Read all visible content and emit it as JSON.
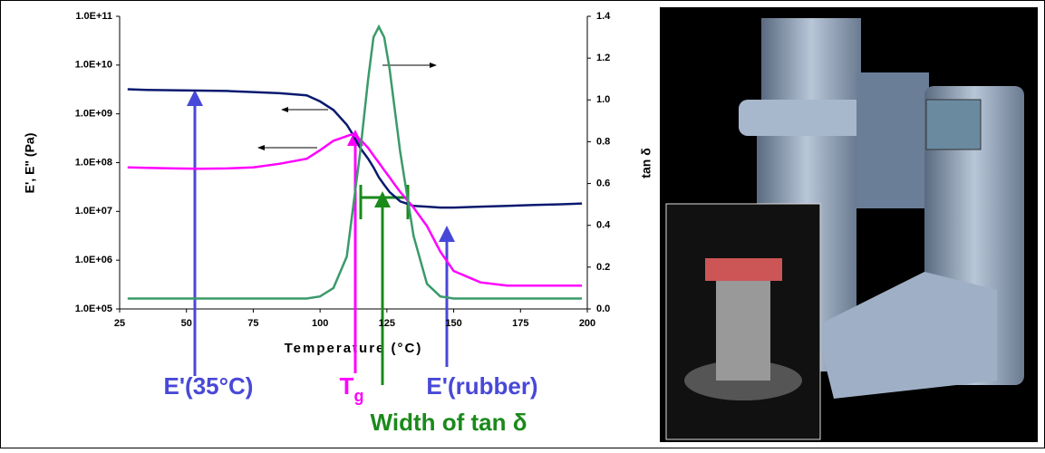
{
  "chart_data": {
    "type": "line",
    "yscale": "log",
    "x_label": "Temperature (°C)",
    "y_label": "E', E\" (Pa)",
    "y2_label": "tan δ",
    "x": [
      28,
      35,
      45,
      55,
      65,
      75,
      85,
      95,
      100,
      105,
      110,
      112,
      115,
      118,
      120,
      122,
      124,
      126,
      128,
      130,
      135,
      140,
      145,
      150,
      160,
      170,
      180,
      190,
      198
    ],
    "series": [
      {
        "color": "#0a1a6e",
        "values": [
          3200000000,
          3100000000,
          3050000000,
          3000000000,
          2950000000,
          2800000000,
          2650000000,
          2400000000,
          1800000000,
          1200000000,
          600000000,
          400000000,
          200000000,
          120000000,
          80000000,
          50000000,
          35000000,
          25000000,
          20000000,
          16000000,
          13000000,
          12500000,
          12000000,
          12000000,
          12500000,
          13000000,
          13500000,
          14000000,
          14500000
        ]
      },
      {
        "color": "#ff00ff",
        "values": [
          80000000,
          78000000,
          76000000,
          75000000,
          76000000,
          80000000,
          95000000,
          120000000,
          180000000,
          280000000,
          350000000,
          380000000,
          300000000,
          200000000,
          140000000,
          100000000,
          70000000,
          50000000,
          35000000,
          25000000,
          12000000,
          5000000,
          1500000,
          600000,
          350000,
          300000,
          300000,
          300000,
          300000
        ]
      },
      {
        "color": "#3a9a6a",
        "axis": "y2",
        "values": [
          0.05,
          0.05,
          0.05,
          0.05,
          0.05,
          0.05,
          0.05,
          0.05,
          0.06,
          0.1,
          0.25,
          0.45,
          0.75,
          1.1,
          1.3,
          1.35,
          1.3,
          1.15,
          0.95,
          0.75,
          0.35,
          0.12,
          0.06,
          0.05,
          0.05,
          0.05,
          0.05,
          0.05,
          0.05
        ]
      }
    ],
    "xlim": [
      25,
      200
    ],
    "xticks": [
      25,
      50,
      75,
      100,
      125,
      150,
      175,
      200
    ],
    "ylim": [
      100000,
      100000000000
    ],
    "yticks": [
      {
        "value": 100000,
        "label": "1.0E+05"
      },
      {
        "value": 1000000,
        "label": "1.0E+06"
      },
      {
        "value": 10000000,
        "label": "1.0E+07"
      },
      {
        "value": 100000000,
        "label": "1.0E+08"
      },
      {
        "value": 1000000000,
        "label": "1.0E+09"
      },
      {
        "value": 10000000000,
        "label": "1.0E+10"
      },
      {
        "value": 100000000000,
        "label": "1.0E+11"
      }
    ],
    "y2lim": [
      0,
      1.4
    ],
    "y2ticks": [
      {
        "value": 0,
        "label": "0.0"
      },
      0.2,
      0.4,
      0.6,
      0.8,
      {
        "value": 1,
        "label": "1.0"
      },
      1.2,
      1.4
    ],
    "annotations": [
      {
        "text": "E'(35°C)"
      },
      {
        "text": "T",
        "subscript": "g"
      },
      {
        "text": "E'(rubber)"
      },
      {
        "text": "Width of tan δ"
      }
    ]
  }
}
